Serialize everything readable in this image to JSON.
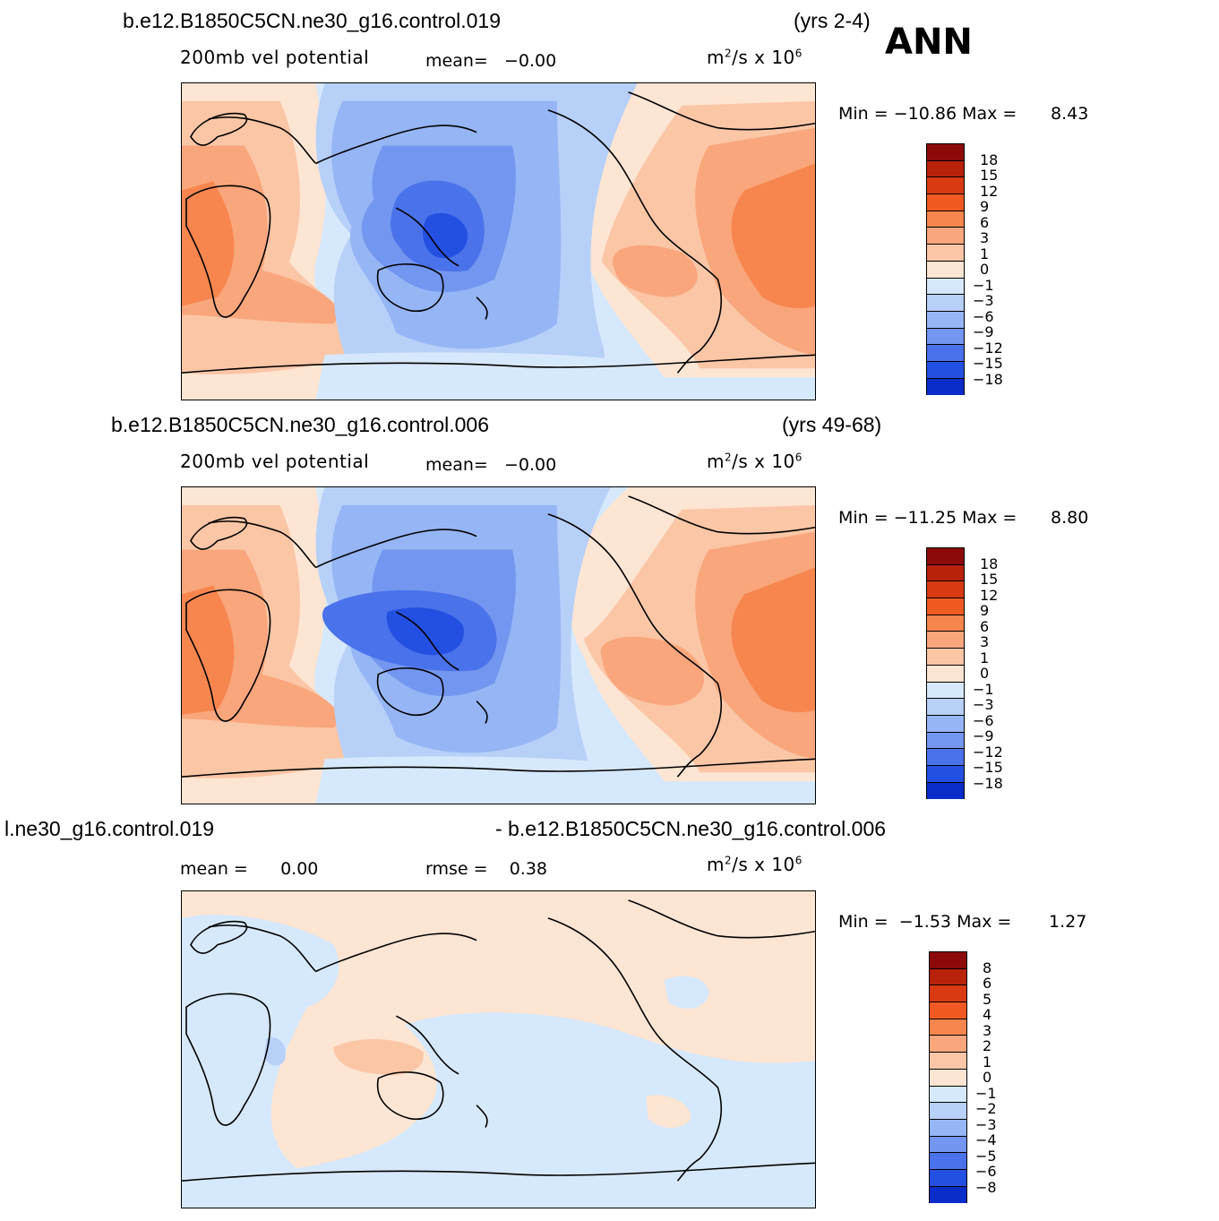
{
  "header": {
    "case1": "b.e12.B1850C5CN.ne30_g16.control.019",
    "years1": "(yrs 2-4)",
    "season": "ANN",
    "case2": "b.e12.B1850C5CN.ne30_g16.control.006",
    "years2": "(yrs 49-68)",
    "diff_left": "l.ne30_g16.control.019",
    "diff_right": "- b.e12.B1850C5CN.ne30_g16.control.006"
  },
  "panels": [
    {
      "variable": "200mb  vel  potential",
      "stat1_label": "mean=",
      "stat1_value": "−0.00",
      "units_base": "m",
      "units_exp": "2",
      "units_mid": "/s  x  10",
      "units_pow": "6",
      "min_label": "Min  =",
      "min_value": "−10.86",
      "max_label": "Max  =",
      "max_value": "8.43",
      "levels": [
        "18",
        "15",
        "12",
        "9",
        "6",
        "3",
        "1",
        "0",
        "−1",
        "−3",
        "−6",
        "−9",
        "−12",
        "−15",
        "−18"
      ]
    },
    {
      "variable": "200mb  vel  potential",
      "stat1_label": "mean=",
      "stat1_value": "−0.00",
      "units_base": "m",
      "units_exp": "2",
      "units_mid": "/s  x  10",
      "units_pow": "6",
      "min_label": "Min  =",
      "min_value": "−11.25",
      "max_label": "Max  =",
      "max_value": "8.80",
      "levels": [
        "18",
        "15",
        "12",
        "9",
        "6",
        "3",
        "1",
        "0",
        "−1",
        "−3",
        "−6",
        "−9",
        "−12",
        "−15",
        "−18"
      ]
    },
    {
      "stat1_label": "mean  =",
      "stat1_value": "0.00",
      "stat2_label": "rmse  =",
      "stat2_value": "0.38",
      "units_base": "m",
      "units_exp": "2",
      "units_mid": "/s  x  10",
      "units_pow": "6",
      "min_label": "Min  =",
      "min_value": "−1.53",
      "max_label": "Max  =",
      "max_value": "1.27",
      "levels": [
        "8",
        "6",
        "5",
        "4",
        "3",
        "2",
        "1",
        "0",
        "−1",
        "−2",
        "−3",
        "−4",
        "−5",
        "−6",
        "−8"
      ]
    }
  ],
  "colors": {
    "ramp": [
      "#8c0a0a",
      "#b8220a",
      "#d93a12",
      "#f05a22",
      "#f7864e",
      "#f9a67c",
      "#fbc6a6",
      "#fde5d3",
      "#d6e8fb",
      "#b7d0f8",
      "#95b5f5",
      "#7396f0",
      "#4a72ea",
      "#2450e2",
      "#0a2cc8",
      "#001490",
      "#000c70"
    ]
  }
}
